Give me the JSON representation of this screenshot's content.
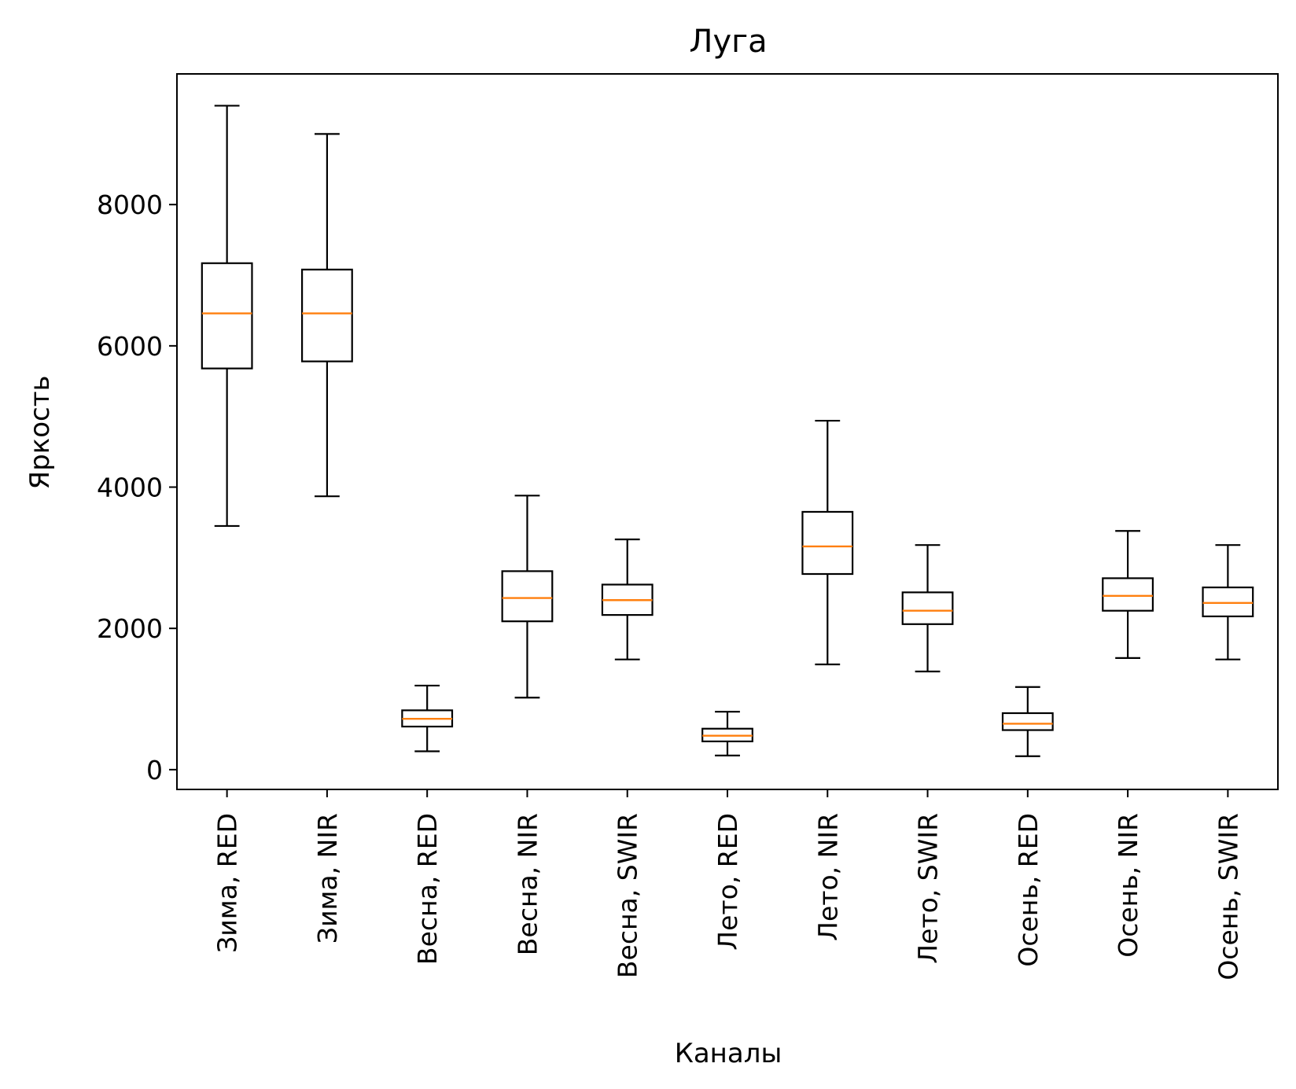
{
  "chart_data": {
    "type": "box",
    "title": "Луга",
    "xlabel": "Каналы",
    "ylabel": "Яркость",
    "ylim": [
      -280,
      9850
    ],
    "yticks": [
      0,
      2000,
      4000,
      6000,
      8000
    ],
    "grid": false,
    "colors": {
      "box": "#000000",
      "median": "#ff7f0e"
    },
    "categories": [
      "Зима, RED",
      "Зима, NIR",
      "Весна, RED",
      "Весна, NIR",
      "Весна, SWIR",
      "Лето, RED",
      "Лето, NIR",
      "Лето, SWIR",
      "Осень, RED",
      "Осень, NIR",
      "Осень, SWIR"
    ],
    "boxes": [
      {
        "whisker_low": 3450,
        "q1": 5680,
        "median": 6460,
        "q3": 7170,
        "whisker_high": 9400
      },
      {
        "whisker_low": 3870,
        "q1": 5780,
        "median": 6460,
        "q3": 7080,
        "whisker_high": 9000
      },
      {
        "whisker_low": 260,
        "q1": 610,
        "median": 720,
        "q3": 840,
        "whisker_high": 1190
      },
      {
        "whisker_low": 1020,
        "q1": 2100,
        "median": 2430,
        "q3": 2810,
        "whisker_high": 3880
      },
      {
        "whisker_low": 1560,
        "q1": 2190,
        "median": 2400,
        "q3": 2620,
        "whisker_high": 3260
      },
      {
        "whisker_low": 200,
        "q1": 400,
        "median": 480,
        "q3": 580,
        "whisker_high": 820
      },
      {
        "whisker_low": 1490,
        "q1": 2770,
        "median": 3160,
        "q3": 3650,
        "whisker_high": 4940
      },
      {
        "whisker_low": 1390,
        "q1": 2060,
        "median": 2250,
        "q3": 2510,
        "whisker_high": 3180
      },
      {
        "whisker_low": 190,
        "q1": 560,
        "median": 650,
        "q3": 800,
        "whisker_high": 1170
      },
      {
        "whisker_low": 1580,
        "q1": 2250,
        "median": 2460,
        "q3": 2710,
        "whisker_high": 3380
      },
      {
        "whisker_low": 1560,
        "q1": 2170,
        "median": 2360,
        "q3": 2580,
        "whisker_high": 3180
      }
    ]
  }
}
